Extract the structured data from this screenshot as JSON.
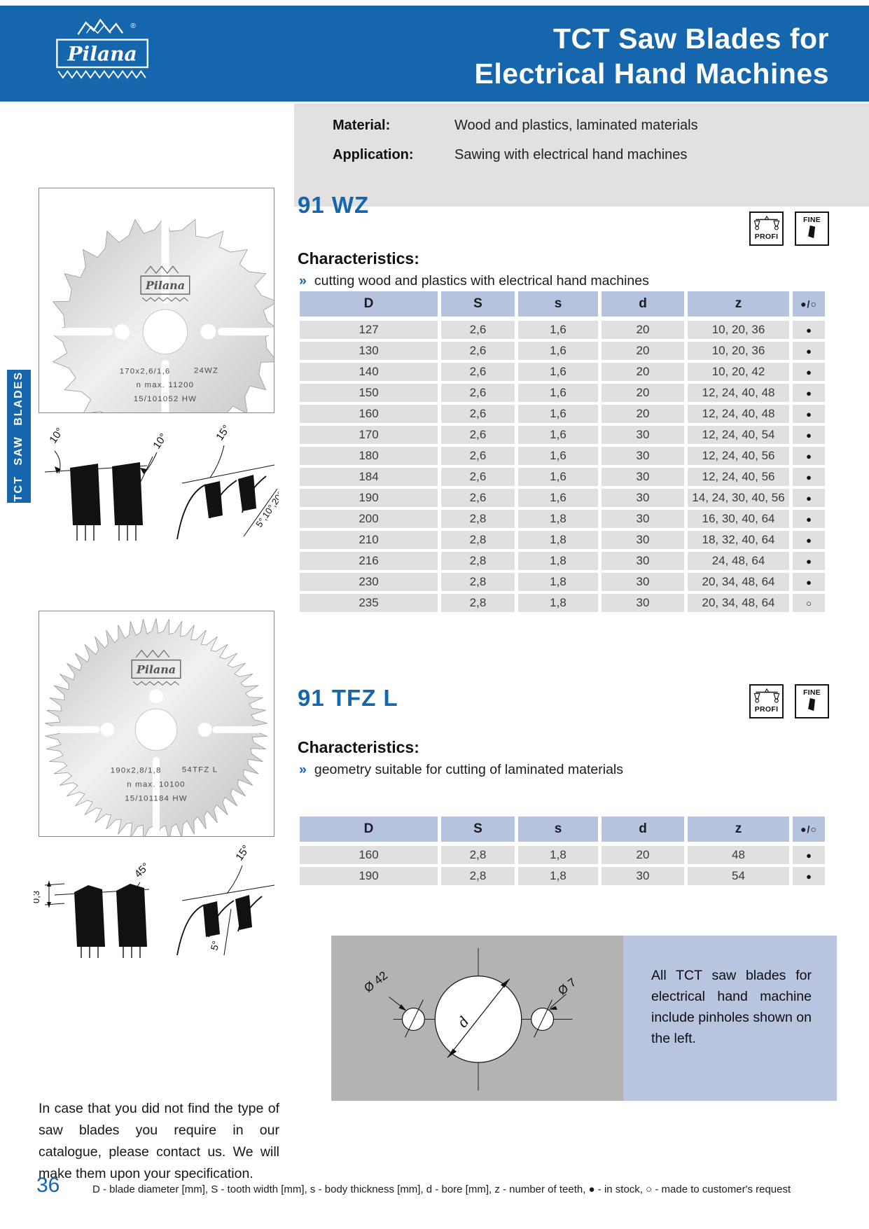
{
  "header": {
    "brand": "Pilana",
    "registered": "®",
    "title_line1": "TCT Saw Blades for",
    "title_line2": "Electrical Hand Machines"
  },
  "sidebar_tab": "TCT SAW BLADES",
  "info": {
    "material_label": "Material:",
    "material_value": "Wood and plastics, laminated materials",
    "application_label": "Application:",
    "application_value": "Sawing with electrical hand machines"
  },
  "badges": {
    "profi": "PROFI",
    "fine": "FINE"
  },
  "section_wz": {
    "title": "91 WZ",
    "characteristics_label": "Characteristics:",
    "bullet_marker": "»",
    "bullet": "cutting wood and plastics with electrical hand machines",
    "blade_markings": {
      "brand": "Pilana",
      "spec": "170x2,6/1,6",
      "tooth_code": "24WZ",
      "rpm": "n max. 11200",
      "serial": "15/101052 HW"
    },
    "angle_labels": {
      "left1": "10°",
      "left2": "10°",
      "right_top": "15°",
      "right_bottom": "5°,10°,20°"
    },
    "table": {
      "headers": [
        "D",
        "S",
        "s",
        "d",
        "z",
        "●/○"
      ],
      "rows": [
        [
          "127",
          "2,6",
          "1,6",
          "20",
          "10, 20, 36",
          "●"
        ],
        [
          "130",
          "2,6",
          "1,6",
          "20",
          "10, 20, 36",
          "●"
        ],
        [
          "140",
          "2,6",
          "1,6",
          "20",
          "10, 20, 42",
          "●"
        ],
        [
          "150",
          "2,6",
          "1,6",
          "20",
          "12, 24, 40, 48",
          "●"
        ],
        [
          "160",
          "2,6",
          "1,6",
          "20",
          "12, 24, 40, 48",
          "●"
        ],
        [
          "170",
          "2,6",
          "1,6",
          "30",
          "12, 24, 40, 54",
          "●"
        ],
        [
          "180",
          "2,6",
          "1,6",
          "30",
          "12, 24, 40, 56",
          "●"
        ],
        [
          "184",
          "2,6",
          "1,6",
          "30",
          "12, 24, 40, 56",
          "●"
        ],
        [
          "190",
          "2,6",
          "1,6",
          "30",
          "14, 24, 30, 40, 56",
          "●"
        ],
        [
          "200",
          "2,8",
          "1,8",
          "30",
          "16, 30, 40, 64",
          "●"
        ],
        [
          "210",
          "2,8",
          "1,8",
          "30",
          "18, 32, 40, 64",
          "●"
        ],
        [
          "216",
          "2,8",
          "1,8",
          "30",
          "24, 48, 64",
          "●"
        ],
        [
          "230",
          "2,8",
          "1,8",
          "30",
          "20, 34, 48, 64",
          "●"
        ],
        [
          "235",
          "2,8",
          "1,8",
          "30",
          "20, 34, 48, 64",
          "○"
        ]
      ]
    }
  },
  "section_tfzl": {
    "title": "91 TFZ L",
    "characteristics_label": "Characteristics:",
    "bullet_marker": "»",
    "bullet": "geometry suitable for cutting of laminated materials",
    "blade_markings": {
      "brand": "Pilana",
      "spec": "190x2,8/1,8",
      "tooth_code": "54TFZ L",
      "rpm": "n max. 10100",
      "serial": "15/101184 HW"
    },
    "angle_labels": {
      "left1": "0,3",
      "left2": "45°",
      "right_top": "15°",
      "right_bottom": "5°"
    },
    "table": {
      "headers": [
        "D",
        "S",
        "s",
        "d",
        "z",
        "●/○"
      ],
      "rows": [
        [
          "160",
          "2,8",
          "1,8",
          "20",
          "48",
          "●"
        ],
        [
          "190",
          "2,8",
          "1,8",
          "30",
          "54",
          "●"
        ]
      ]
    }
  },
  "pinhole": {
    "label_left": "Ø 42",
    "label_right": "Ø 7",
    "label_bore": "d",
    "note": "All TCT saw blades for electrical hand machine include pinholes shown on the left."
  },
  "contact_note": "In case that you did not find the type of saw blades you require in our catalogue, please contact us. We will make them upon your specification.",
  "footer": {
    "page_number": "36",
    "legend": "D - blade diameter [mm], S - tooth width [mm], s - body thickness [mm], d - bore [mm], z - number of teeth, ● - in stock, ○ - made to customer's request"
  },
  "colors": {
    "header_blue": "#1566ad",
    "table_header_blue": "#b6c3de",
    "row_gray": "#e0e0e0",
    "panel_gray": "#e1e1e1",
    "diagram_gray": "#b3b3b3",
    "note_blue": "#b9c5df"
  }
}
